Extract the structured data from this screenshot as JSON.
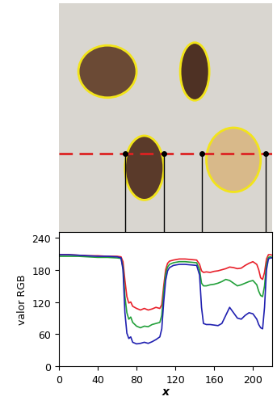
{
  "chart_data": {
    "type": "line",
    "xlabel": "x",
    "ylabel": "valor RGB",
    "x": [
      0,
      10,
      20,
      30,
      40,
      50,
      60,
      64,
      66,
      68,
      70,
      72,
      74,
      76,
      80,
      84,
      88,
      92,
      96,
      100,
      104,
      106,
      108,
      110,
      112,
      114,
      118,
      124,
      130,
      136,
      142,
      145,
      147,
      149,
      152,
      156,
      160,
      164,
      168,
      172,
      176,
      180,
      184,
      188,
      192,
      196,
      200,
      204,
      206,
      208,
      210,
      212,
      214,
      216,
      218,
      220
    ],
    "series": [
      {
        "color": "#e8202a",
        "values": [
          208,
          208,
          207,
          206,
          206,
          205,
          205,
          204,
          195,
          160,
          130,
          118,
          120,
          112,
          108,
          105,
          108,
          105,
          107,
          110,
          108,
          115,
          150,
          180,
          192,
          196,
          198,
          200,
          200,
          199,
          198,
          190,
          178,
          175,
          176,
          175,
          177,
          178,
          180,
          182,
          185,
          184,
          182,
          183,
          188,
          192,
          195,
          190,
          180,
          165,
          162,
          175,
          200,
          208,
          208,
          207
        ]
      },
      {
        "color": "#22a03a",
        "values": [
          205,
          205,
          205,
          204,
          203,
          203,
          202,
          201,
          185,
          130,
          100,
          88,
          92,
          82,
          75,
          72,
          75,
          74,
          78,
          80,
          82,
          95,
          140,
          172,
          185,
          190,
          193,
          195,
          195,
          194,
          193,
          180,
          155,
          150,
          150,
          152,
          153,
          155,
          158,
          162,
          160,
          155,
          150,
          152,
          155,
          158,
          160,
          152,
          140,
          132,
          130,
          150,
          190,
          203,
          204,
          203
        ]
      },
      {
        "color": "#2020b0",
        "values": [
          208,
          208,
          207,
          206,
          205,
          205,
          204,
          202,
          180,
          100,
          62,
          52,
          55,
          45,
          42,
          43,
          45,
          43,
          46,
          50,
          55,
          70,
          120,
          160,
          178,
          184,
          188,
          190,
          190,
          189,
          188,
          170,
          110,
          80,
          78,
          78,
          77,
          76,
          80,
          95,
          110,
          100,
          90,
          88,
          95,
          100,
          98,
          88,
          78,
          72,
          70,
          110,
          180,
          200,
          202,
          202
        ]
      }
    ],
    "boundaries": [
      68,
      108,
      147,
      213
    ],
    "xlim": [
      0,
      220
    ],
    "ylim": [
      0,
      250
    ],
    "xticks": [
      0,
      40,
      80,
      120,
      160,
      200
    ],
    "yticks": [
      0,
      60,
      120,
      180,
      240
    ],
    "grid": false
  }
}
